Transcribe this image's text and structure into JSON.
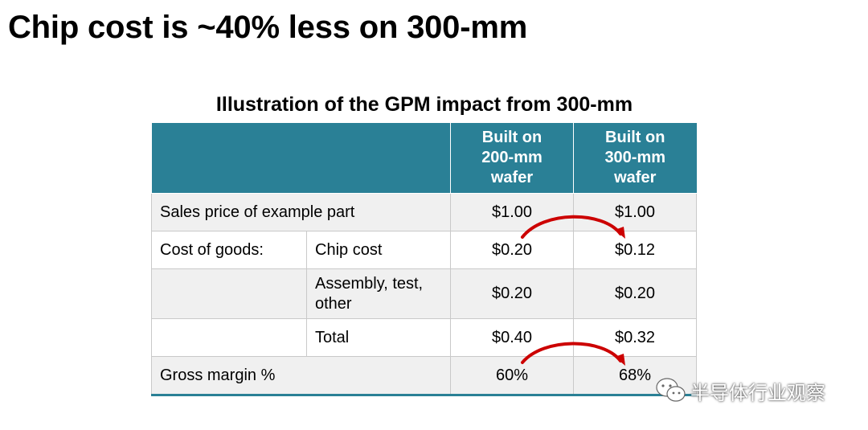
{
  "slide": {
    "title": "Chip cost is ~40% less on 300-mm"
  },
  "table": {
    "title": "Illustration of the GPM impact from 300-mm",
    "headers": {
      "col_200": "Built on\n200-mm\nwafer",
      "col_300": "Built on\n300-mm\nwafer"
    },
    "rows": [
      {
        "label": "Sales price of example part",
        "sublabel": "",
        "v200": "$1.00",
        "v300": "$1.00"
      },
      {
        "label": "Cost of goods:",
        "sublabel": "Chip cost",
        "v200": "$0.20",
        "v300": "$0.12"
      },
      {
        "label": "",
        "sublabel": "Assembly, test,\nother",
        "v200": "$0.20",
        "v300": "$0.20"
      },
      {
        "label": "",
        "sublabel": "Total",
        "v200": "$0.40",
        "v300": "$0.32"
      },
      {
        "label": "Gross margin %",
        "sublabel": "",
        "v200": "60%",
        "v300": "68%"
      }
    ],
    "header_color": "#2a8096",
    "arrow_color": "#cc0000"
  },
  "watermark": {
    "text": "半导体行业观察",
    "icon": "wechat-icon"
  }
}
